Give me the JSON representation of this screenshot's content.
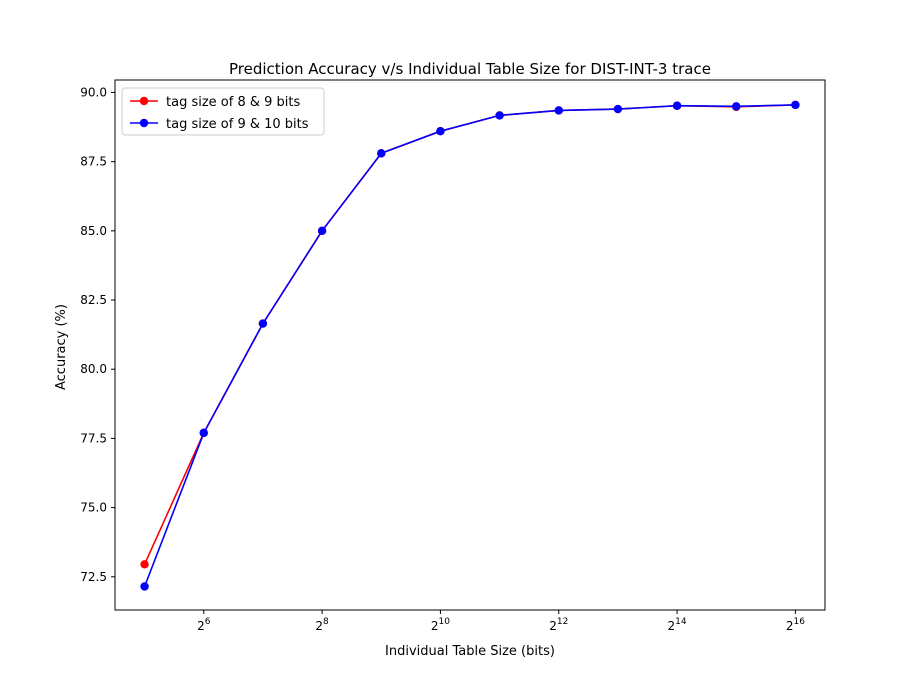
{
  "chart_data": {
    "type": "line",
    "title": "Prediction Accuracy v/s Individual Table Size for DIST-INT-3 trace",
    "xlabel": "Individual Table Size (bits)",
    "ylabel": "Accuracy (%)",
    "x_scale": "log2",
    "x": [
      32,
      64,
      128,
      256,
      512,
      1024,
      2048,
      4096,
      8192,
      16384,
      32768,
      65536
    ],
    "xticks": [
      {
        "value": 64,
        "base": "2",
        "exp": "6"
      },
      {
        "value": 256,
        "base": "2",
        "exp": "8"
      },
      {
        "value": 1024,
        "base": "2",
        "exp": "10"
      },
      {
        "value": 4096,
        "base": "2",
        "exp": "12"
      },
      {
        "value": 16384,
        "base": "2",
        "exp": "14"
      },
      {
        "value": 65536,
        "base": "2",
        "exp": "16"
      }
    ],
    "yticks": [
      "72.5",
      "75.0",
      "77.5",
      "80.0",
      "82.5",
      "85.0",
      "87.5",
      "90.0"
    ],
    "ylim": [
      71.3,
      90.45
    ],
    "xlim_log2": [
      4.5,
      16.5
    ],
    "grid": false,
    "legend_position": "top-left",
    "series": [
      {
        "name": "tag size of 8 & 9 bits",
        "color": "#ff0000",
        "values": [
          72.95,
          77.7,
          81.65,
          85.0,
          87.8,
          88.6,
          89.17,
          89.35,
          89.4,
          89.52,
          89.48,
          89.55
        ]
      },
      {
        "name": "tag size of 9 & 10 bits",
        "color": "#0000ff",
        "values": [
          72.15,
          77.7,
          81.65,
          85.0,
          87.8,
          88.6,
          89.17,
          89.35,
          89.4,
          89.52,
          89.5,
          89.55
        ]
      }
    ]
  }
}
